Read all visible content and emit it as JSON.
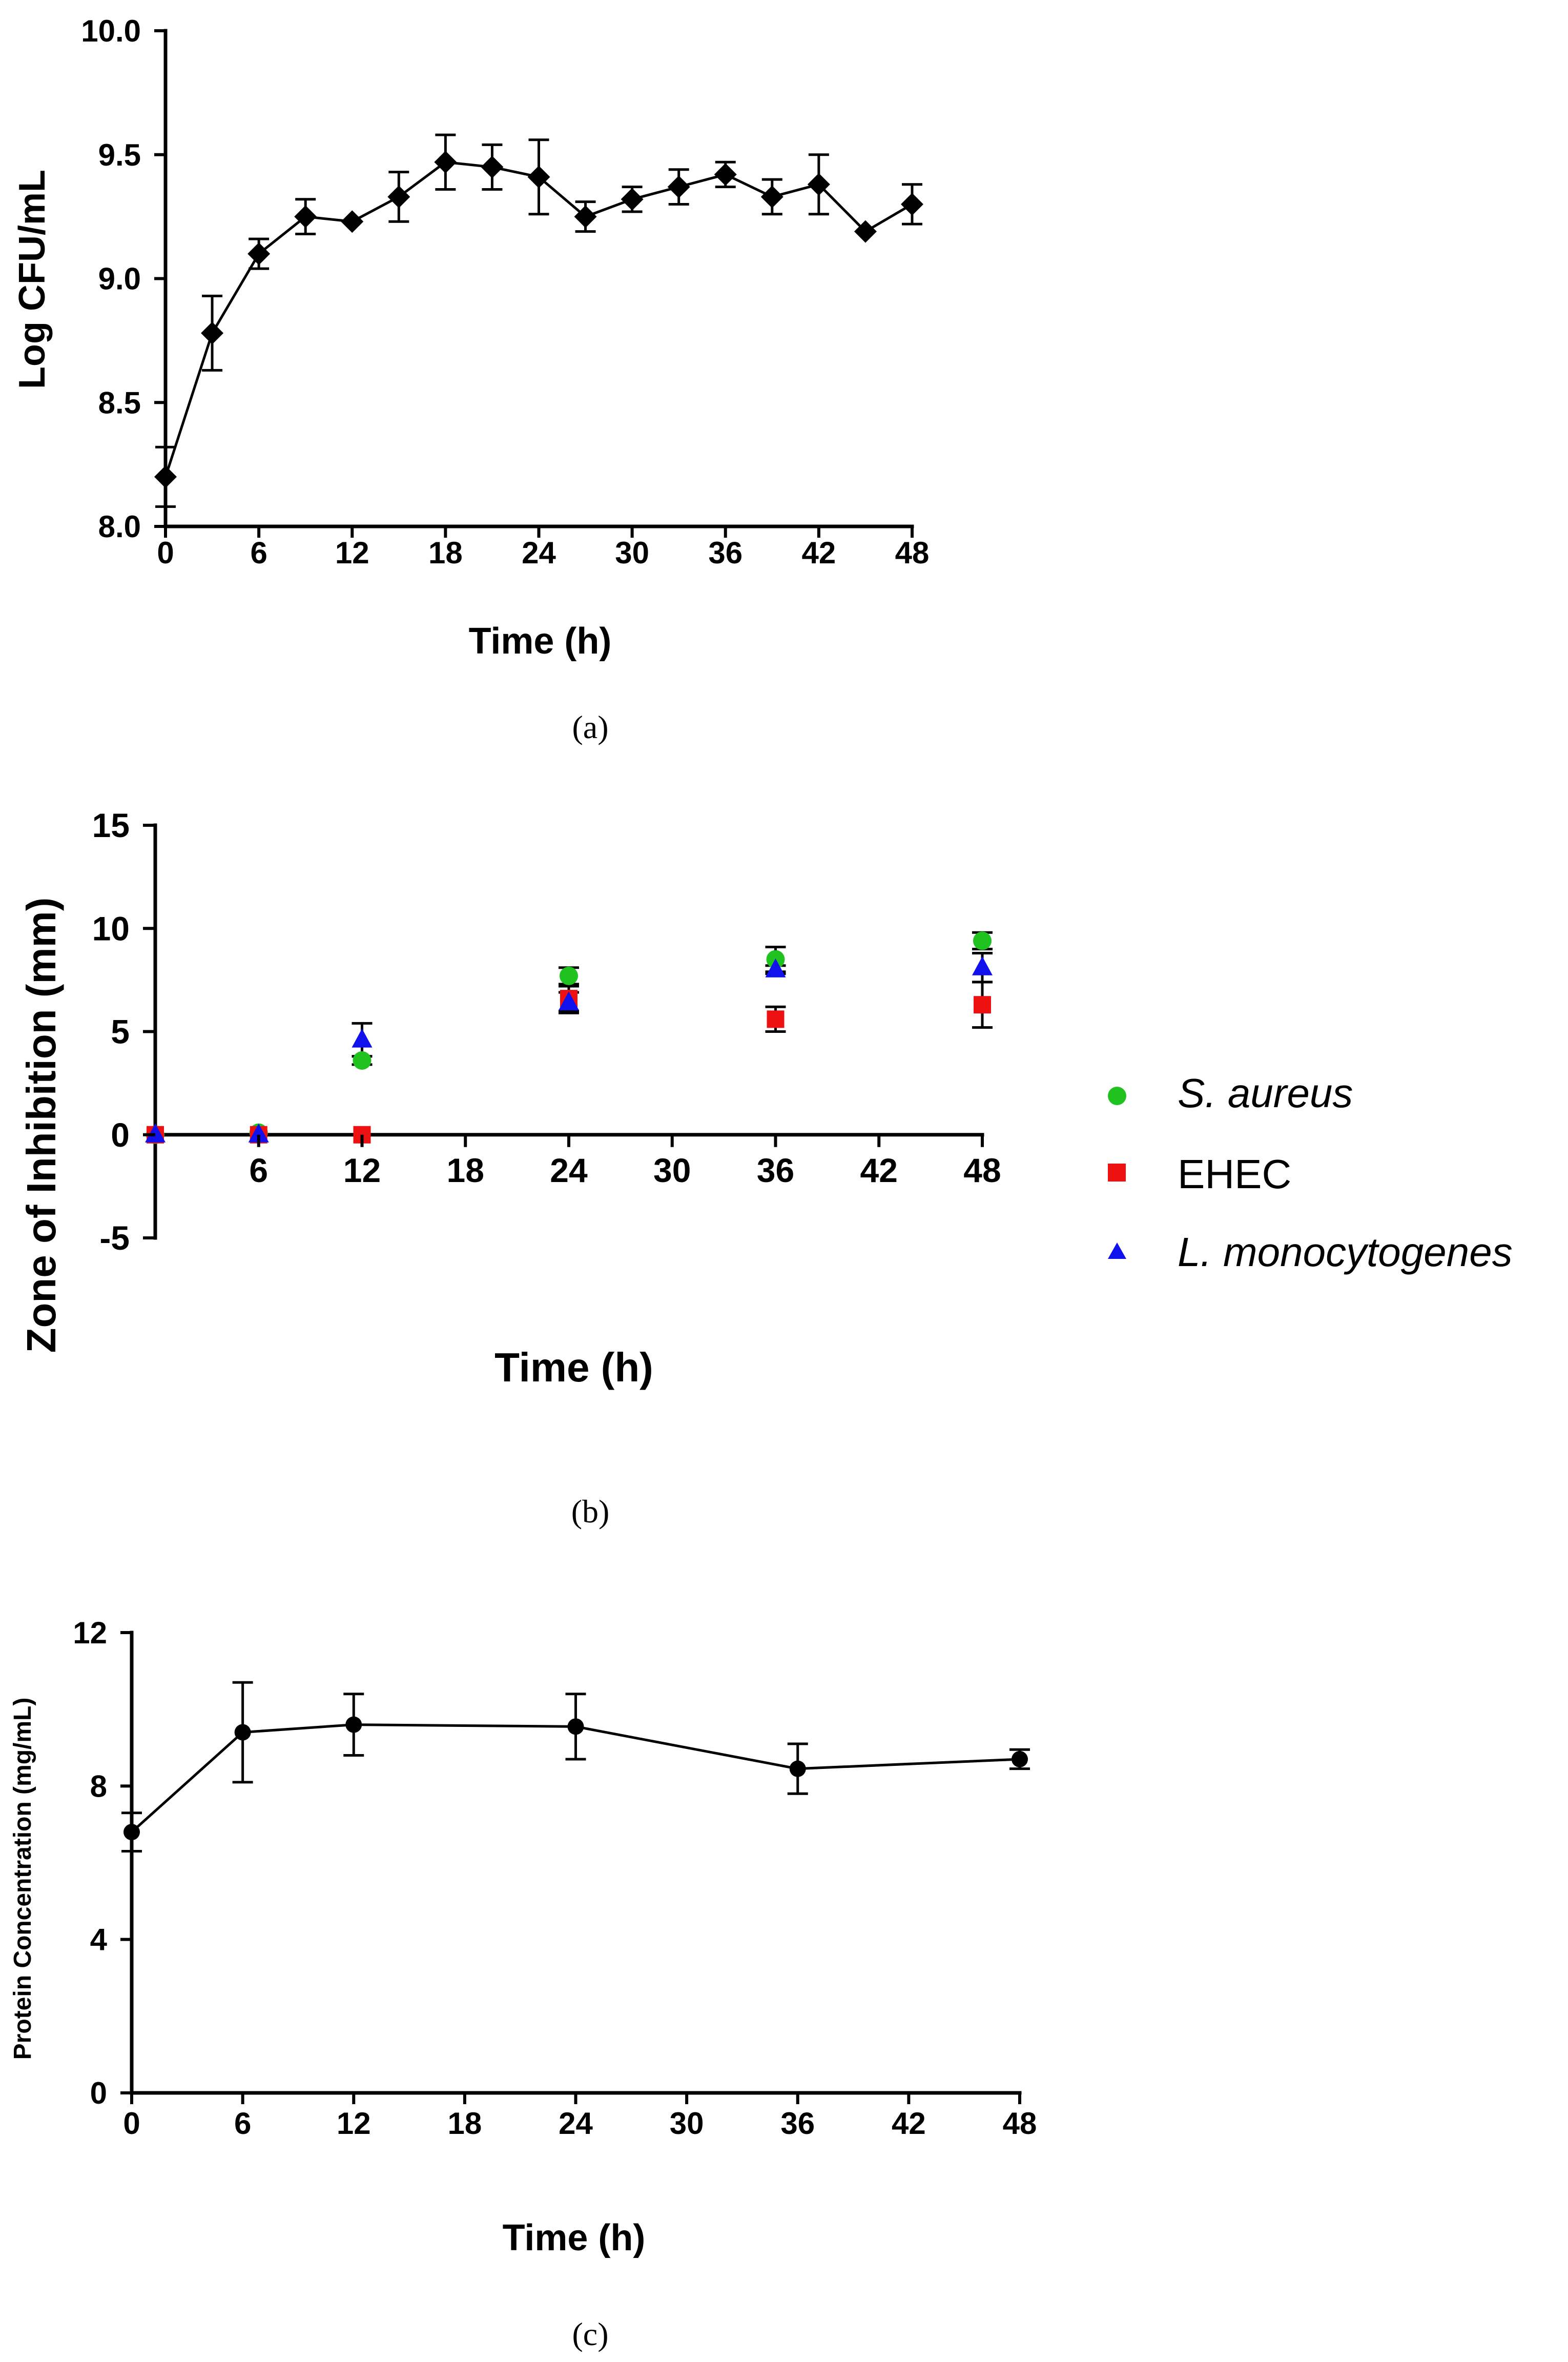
{
  "chart_data": [
    {
      "id": "a",
      "type": "line",
      "panel_label": "(a)",
      "title": "",
      "xlabel": "Time (h)",
      "ylabel": "Log CFU/mL",
      "xlim": [
        0,
        48
      ],
      "ylim": [
        8.0,
        10.0
      ],
      "xticks": [
        "0",
        "6",
        "12",
        "18",
        "24",
        "30",
        "36",
        "42",
        "48"
      ],
      "yticks": [
        "8.0",
        "8.5",
        "9.0",
        "9.5",
        "10.0"
      ],
      "grid": false,
      "marker": "diamond",
      "color": "#000000",
      "x": [
        0,
        3,
        6,
        9,
        12,
        15,
        18,
        21,
        24,
        27,
        30,
        33,
        36,
        39,
        42,
        45,
        48
      ],
      "y": [
        8.2,
        8.78,
        9.1,
        9.25,
        9.23,
        9.33,
        9.47,
        9.45,
        9.41,
        9.25,
        9.32,
        9.37,
        9.42,
        9.33,
        9.38,
        9.19,
        9.3
      ],
      "err": [
        0.12,
        0.15,
        0.06,
        0.07,
        0.0,
        0.1,
        0.11,
        0.09,
        0.15,
        0.06,
        0.05,
        0.07,
        0.05,
        0.07,
        0.12,
        0.0,
        0.08
      ]
    },
    {
      "id": "b",
      "type": "scatter",
      "panel_label": "(b)",
      "title": "",
      "xlabel": "Time (h)",
      "ylabel": "Zone of Inhibition (mm)",
      "xlim": [
        0,
        48
      ],
      "ylim": [
        -5,
        15
      ],
      "xticks": [
        "6",
        "12",
        "18",
        "24",
        "30",
        "36",
        "42",
        "48"
      ],
      "yticks": [
        "-5",
        "0",
        "5",
        "10",
        "15"
      ],
      "grid": false,
      "legend_position": "right",
      "series": [
        {
          "name": "S. aureus",
          "italic": true,
          "marker": "circle",
          "color": "#1fc21f",
          "x": [
            0,
            6,
            12,
            24,
            36,
            48
          ],
          "y": [
            0,
            0.1,
            3.6,
            7.7,
            8.5,
            9.4
          ],
          "err": [
            0,
            0,
            0.2,
            0.4,
            0.6,
            0.4
          ]
        },
        {
          "name": "EHEC",
          "italic": false,
          "marker": "square",
          "color": "#ee1111",
          "x": [
            0,
            6,
            12,
            24,
            36,
            48
          ],
          "y": [
            0,
            0,
            0,
            6.6,
            5.6,
            6.3
          ],
          "err": [
            0,
            0,
            0,
            0.6,
            0.6,
            1.1
          ]
        },
        {
          "name": "L. monocytogenes",
          "italic": true,
          "marker": "triangle",
          "color": "#1111ee",
          "x": [
            0,
            6,
            12,
            24,
            36,
            48
          ],
          "y": [
            0,
            0,
            4.6,
            6.4,
            8.0,
            8.1
          ],
          "err": [
            0,
            0,
            0.8,
            0.5,
            0.2,
            0.7
          ]
        }
      ]
    },
    {
      "id": "c",
      "type": "line",
      "panel_label": "(c)",
      "title": "",
      "xlabel": "Time (h)",
      "ylabel": "Protein Concentration (mg/mL)",
      "xlim": [
        0,
        48
      ],
      "ylim": [
        0,
        12
      ],
      "xticks": [
        "0",
        "6",
        "12",
        "18",
        "24",
        "30",
        "36",
        "42",
        "48"
      ],
      "yticks": [
        "0",
        "4",
        "8",
        "12"
      ],
      "grid": false,
      "marker": "circle",
      "color": "#000000",
      "x": [
        0,
        6,
        12,
        24,
        36,
        48
      ],
      "y": [
        6.8,
        9.4,
        9.6,
        9.55,
        8.45,
        8.7
      ],
      "err": [
        0.5,
        1.3,
        0.8,
        0.85,
        0.65,
        0.25
      ]
    }
  ]
}
